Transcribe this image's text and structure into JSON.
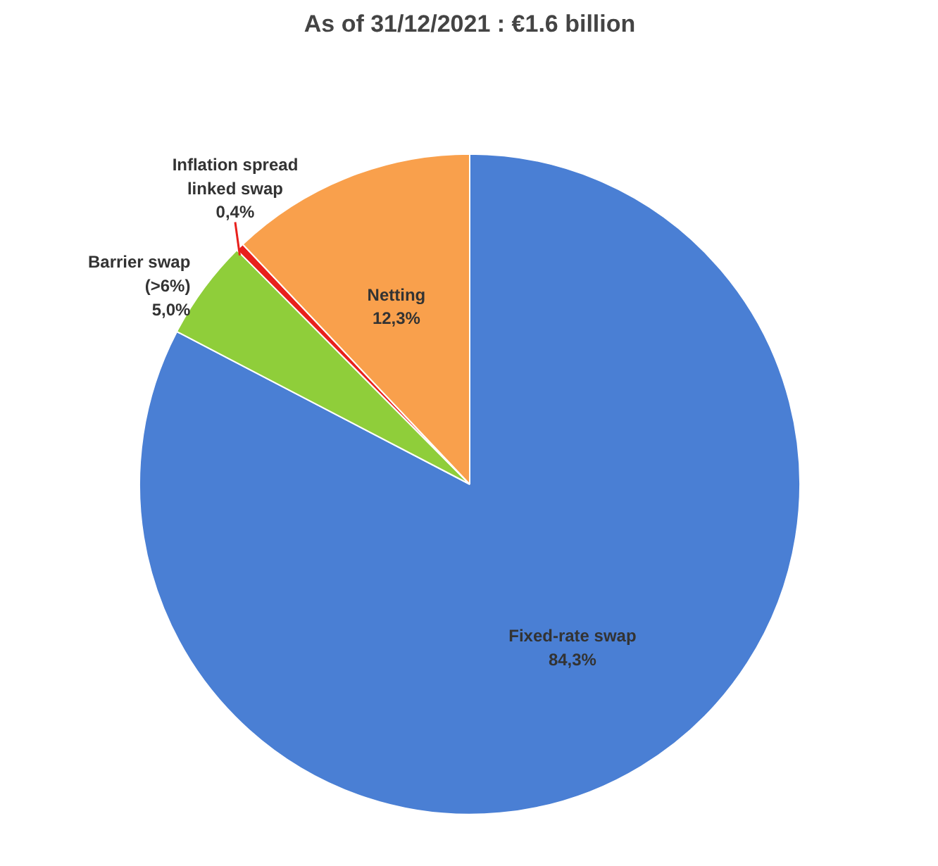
{
  "chart_data": {
    "type": "pie",
    "title": "As of 31/12/2021 : €1.6 billion",
    "categories": [
      "Fixed-rate swap",
      "Barrier swap (>6%)",
      "Inflation spread linked swap",
      "Netting"
    ],
    "values": [
      84.3,
      5.0,
      0.4,
      12.3
    ],
    "colors": [
      "#4a7fd4",
      "#8fce3a",
      "#e8201c",
      "#f9a04c"
    ],
    "value_labels": [
      "84,3%",
      "5,0%",
      "0,4%",
      "12,3%"
    ]
  }
}
